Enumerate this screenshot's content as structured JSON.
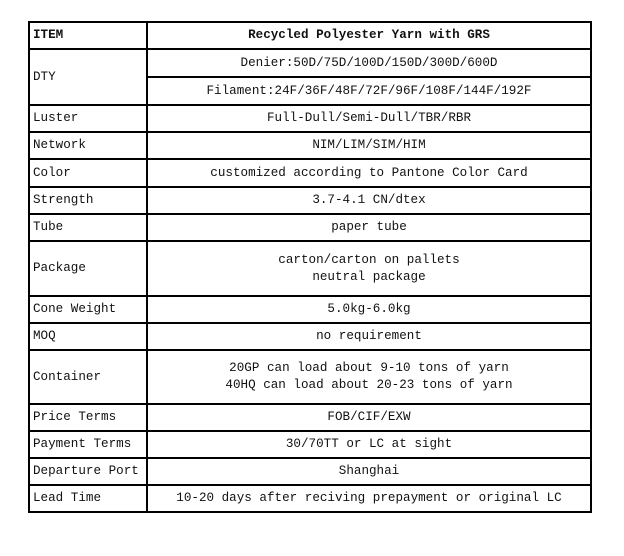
{
  "header": {
    "item": "ITEM",
    "title": "Recycled Polyester Yarn with GRS"
  },
  "rows": [
    {
      "label": "DTY",
      "values": [
        "Denier:50D/75D/100D/150D/300D/600D",
        "Filament:24F/36F/48F/72F/96F/108F/144F/192F"
      ]
    },
    {
      "label": "Luster",
      "value": "Full-Dull/Semi-Dull/TBR/RBR"
    },
    {
      "label": "Network",
      "value": "NIM/LIM/SIM/HIM"
    },
    {
      "label": "Color",
      "value": "customized according to Pantone Color Card"
    },
    {
      "label": "Strength",
      "value": "3.7-4.1 CN/dtex"
    },
    {
      "label": "Tube",
      "value": "paper tube"
    },
    {
      "label": "Package",
      "lines": [
        "carton/carton on pallets",
        "neutral package"
      ]
    },
    {
      "label": "Cone Weight",
      "value": "5.0kg-6.0kg"
    },
    {
      "label": "MOQ",
      "value": "no requirement"
    },
    {
      "label": "Container",
      "lines": [
        "20GP can load about 9-10 tons of yarn",
        "40HQ can load about 20-23 tons of yarn"
      ]
    },
    {
      "label": "Price Terms",
      "value": "FOB/CIF/EXW"
    },
    {
      "label": "Payment Terms",
      "value": "30/70TT or LC at sight"
    },
    {
      "label": "Departure Port",
      "value": "Shanghai"
    },
    {
      "label": "Lead Time",
      "value": "10-20 days after reciving prepayment or original LC"
    }
  ]
}
